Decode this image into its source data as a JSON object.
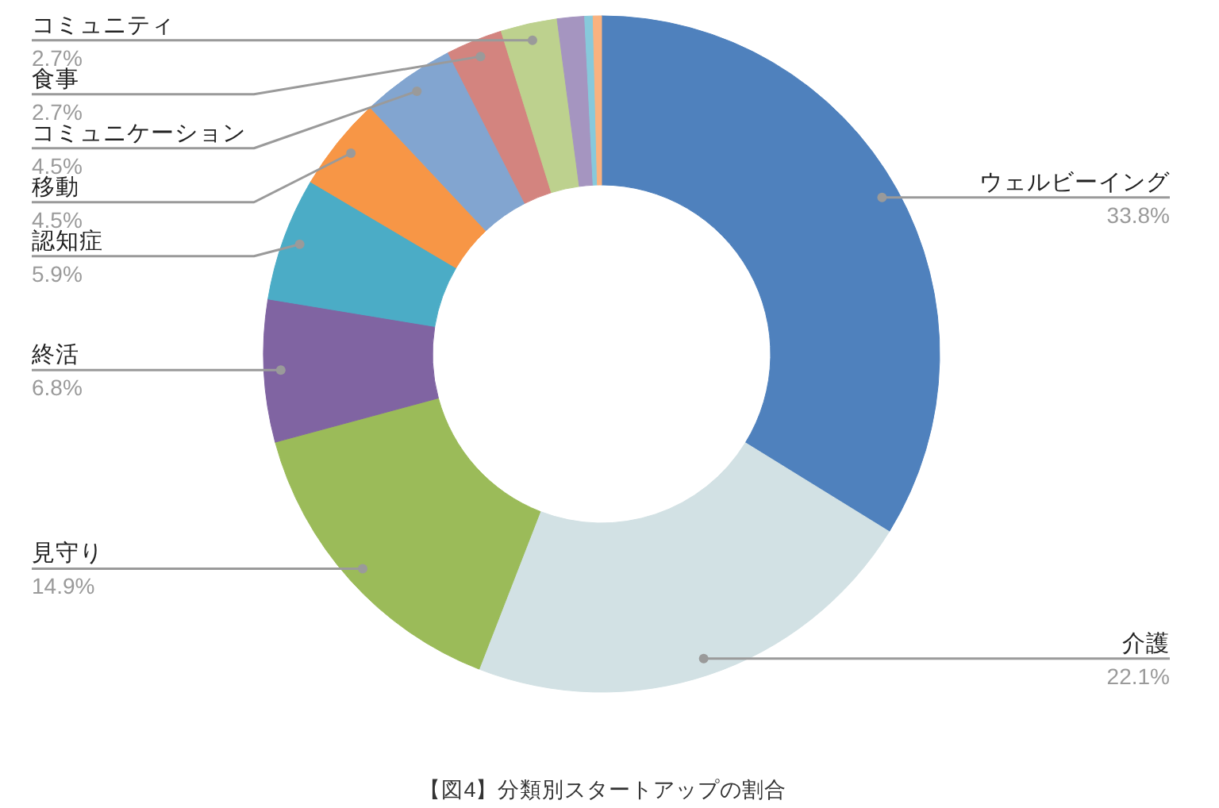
{
  "chart_data": {
    "type": "donut",
    "title": "【図4】分類別スタートアップの割合",
    "categories": [
      "ウェルビーイング",
      "介護",
      "見守り",
      "終活",
      "認知症",
      "移動",
      "コミュニケーション",
      "食事",
      "コミュニティ",
      null,
      null,
      null
    ],
    "values": [
      33.8,
      22.1,
      14.9,
      6.8,
      5.9,
      4.5,
      4.5,
      2.7,
      2.7,
      1.3,
      0.4,
      0.4
    ],
    "colors": [
      "#4f81bd",
      "#d2e1e4",
      "#9bbb59",
      "#8064a2",
      "#4bacc6",
      "#f79646",
      "#82a5d0",
      "#d3847f",
      "#bdd18e",
      "#a595c0",
      "#87c9db",
      "#f9b27f"
    ],
    "value_labels": [
      "33.8%",
      "22.1%",
      "14.9%",
      "6.8%",
      "5.9%",
      "4.5%",
      "4.5%",
      "2.7%",
      "2.7%",
      null,
      null,
      null
    ]
  }
}
